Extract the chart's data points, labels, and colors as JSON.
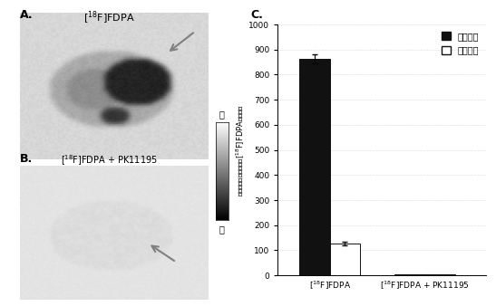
{
  "panel_A_label": "A.",
  "panel_B_label": "B.",
  "panel_C_label": "C.",
  "title_A": "$[^{18}$F]FDPA",
  "title_B": "$[^{18}$F]FDPA + PK11195",
  "colorbar_high": "高",
  "colorbar_low": "低",
  "legend_label_black": "缺血区域",
  "legend_label_white": "常规区域",
  "bar_data": {
    "group1_black": 862,
    "group1_white": 128,
    "group2_black": 3,
    "group2_white": 3
  },
  "error_bars": {
    "group1_black": 18,
    "group1_white": 8,
    "group2_black": 1,
    "group2_white": 1
  },
  "ylim": [
    0,
    1000
  ],
  "yticks": [
    0,
    100,
    200,
    300,
    400,
    500,
    600,
    700,
    800,
    900,
    1000
  ],
  "bar_width": 0.32,
  "bar_color_black": "#111111",
  "bar_color_white": "#ffffff",
  "bar_edge_color": "#111111",
  "fig_bg": "#ffffff"
}
